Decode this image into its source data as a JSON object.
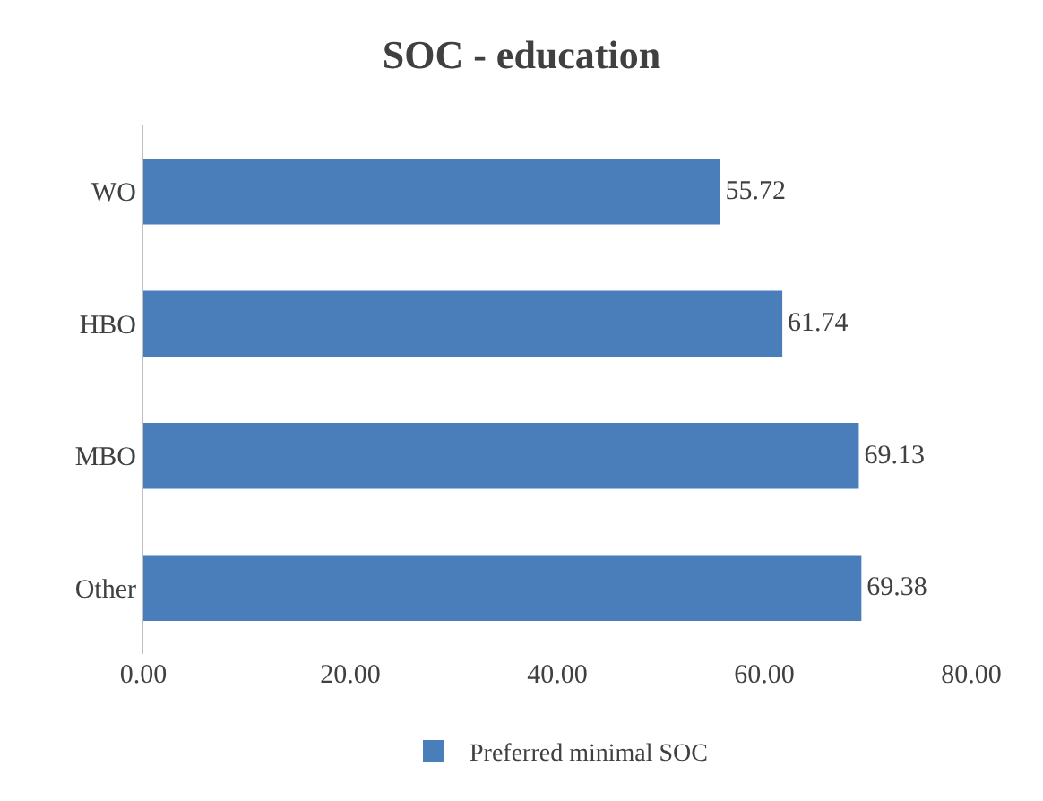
{
  "chart_data": {
    "type": "bar",
    "orientation": "horizontal",
    "title": "SOC - education",
    "categories": [
      "WO",
      "HBO",
      "MBO",
      "Other"
    ],
    "series": [
      {
        "name": "Preferred minimal SOC",
        "color": "#4a7ebb",
        "values": [
          55.72,
          61.74,
          69.13,
          69.38
        ]
      }
    ],
    "xlim": [
      0,
      80
    ],
    "xticks": [
      {
        "value": 0,
        "label": "0.00"
      },
      {
        "value": 20,
        "label": "20.00"
      },
      {
        "value": 40,
        "label": "40.00"
      },
      {
        "value": 60,
        "label": "60.00"
      },
      {
        "value": 80,
        "label": "80.00"
      }
    ],
    "data_labels": true,
    "grid": false,
    "legend": "bottom"
  }
}
